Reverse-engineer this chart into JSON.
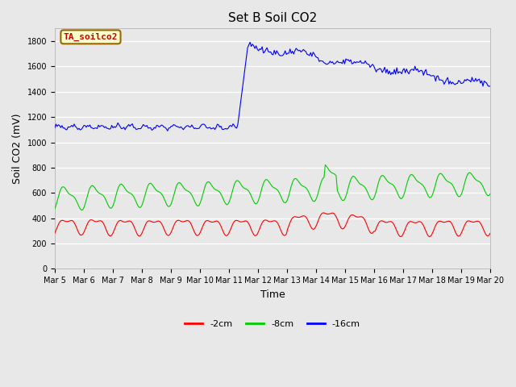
{
  "title": "Set B Soil CO2",
  "xlabel": "Time",
  "ylabel": "Soil CO2 (mV)",
  "ylim": [
    0,
    1900
  ],
  "yticks": [
    0,
    200,
    400,
    600,
    800,
    1000,
    1200,
    1400,
    1600,
    1800
  ],
  "x_tick_labels": [
    "Mar 5",
    "Mar 6",
    "Mar 7",
    "Mar 8",
    "Mar 9",
    "Mar 10",
    "Mar 11",
    "Mar 12",
    "Mar 13",
    "Mar 14",
    "Mar 15",
    "Mar 16",
    "Mar 17",
    "Mar 18",
    "Mar 19",
    "Mar 20"
  ],
  "background_color": "#e8e8e8",
  "plot_bg_color": "#e8e8e8",
  "grid_color": "#ffffff",
  "annotation_text": "TA_soilco2",
  "annotation_bg": "#ffffcc",
  "annotation_border": "#996600",
  "line_red_color": "#ff0000",
  "line_green_color": "#00cc00",
  "line_blue_color": "#0000ff",
  "legend_labels": [
    "-2cm",
    "-8cm",
    "-16cm"
  ],
  "line_width": 0.8,
  "title_fontsize": 11,
  "axis_label_fontsize": 9,
  "tick_fontsize": 7
}
